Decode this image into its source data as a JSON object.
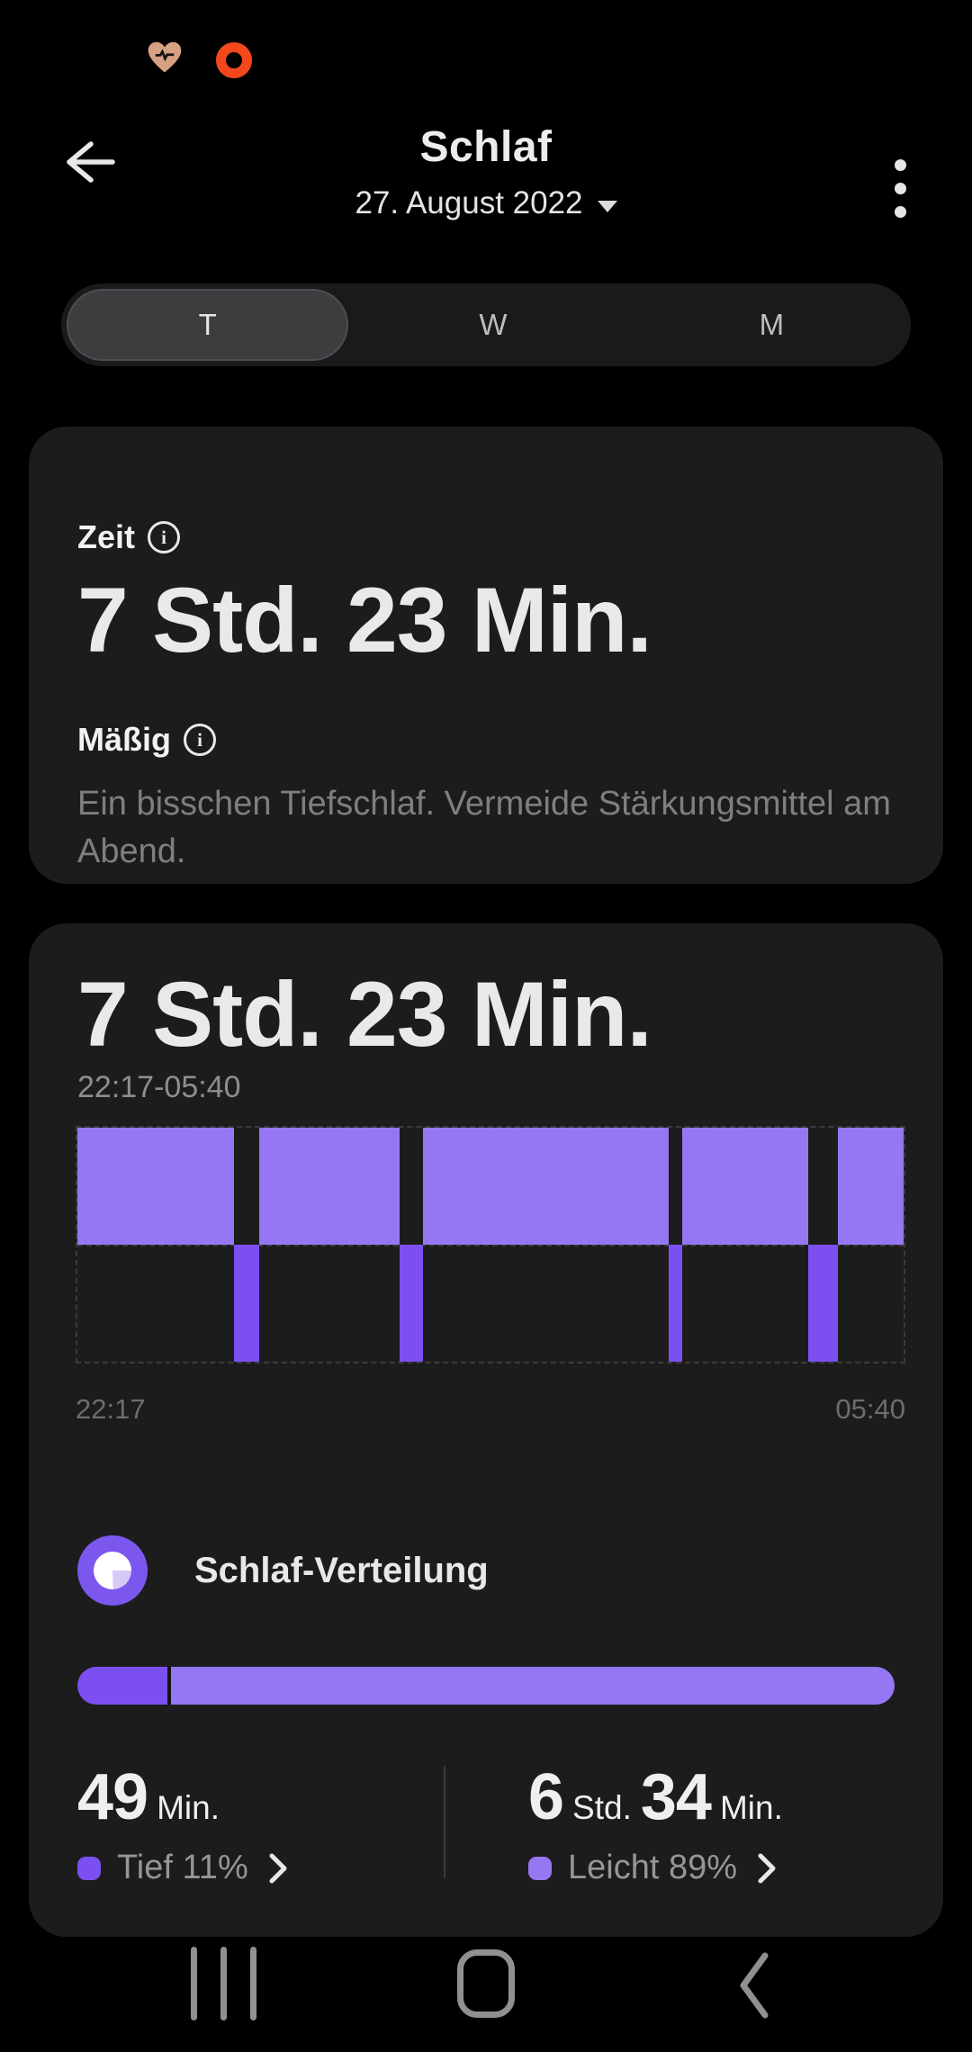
{
  "status": {
    "icons": [
      {
        "name": "heart-rate-monitoring",
        "color": "#d7a183"
      },
      {
        "name": "screen-recording",
        "color": "#f4481c"
      }
    ]
  },
  "header": {
    "title": "Schlaf",
    "date": "27. August 2022"
  },
  "tabs": {
    "day": "T",
    "week": "W",
    "month": "M",
    "selected": "T"
  },
  "summary_card": {
    "time_label": "Zeit",
    "duration": "7 Std. 23 Min.",
    "quality_label": "Mäßig",
    "description": "Ein bisschen Tiefschlaf. Vermeide Stärkungsmittel am Abend."
  },
  "detail_card": {
    "duration": "7 Std. 23 Min.",
    "time_range": "22:17-05:40",
    "axis_start": "22:17",
    "axis_end": "05:40",
    "distribution_title": "Schlaf-Verteilung",
    "stats": {
      "deep": {
        "value": "49",
        "unit": "Min.",
        "legend": "Tief 11%"
      },
      "light": {
        "value_hours": "6",
        "unit_hours": "Std.",
        "value_minutes": "34",
        "unit_minutes": "Min.",
        "legend": "Leicht 89%"
      }
    }
  },
  "chart_data": [
    {
      "type": "timeline",
      "title": "Schlafphasen-Hypnogramm",
      "x_start": "22:17",
      "x_end": "05:40",
      "total_duration": "7 Std. 23 Min.",
      "colors": {
        "light": "#9577f3",
        "deep": "#7b4ff0"
      },
      "segments": [
        {
          "stage": "light",
          "start_pct": 0,
          "end_pct": 19
        },
        {
          "stage": "deep",
          "start_pct": 19,
          "end_pct": 22
        },
        {
          "stage": "light",
          "start_pct": 22,
          "end_pct": 39
        },
        {
          "stage": "deep",
          "start_pct": 39,
          "end_pct": 41.8
        },
        {
          "stage": "light",
          "start_pct": 41.8,
          "end_pct": 71.6
        },
        {
          "stage": "deep",
          "start_pct": 71.6,
          "end_pct": 73.2
        },
        {
          "stage": "light",
          "start_pct": 73.2,
          "end_pct": 88.4
        },
        {
          "stage": "deep",
          "start_pct": 88.4,
          "end_pct": 92
        },
        {
          "stage": "light",
          "start_pct": 92,
          "end_pct": 100
        }
      ]
    },
    {
      "type": "stacked-bar",
      "title": "Schlaf-Verteilung",
      "series": [
        {
          "name": "Tief",
          "percent": 11,
          "duration_min": 49,
          "color": "#7b4ff0"
        },
        {
          "name": "Leicht",
          "percent": 89,
          "duration_min": 394,
          "color": "#9577f3"
        }
      ]
    }
  ],
  "navbar": {
    "icons": [
      "recents",
      "home",
      "back"
    ]
  }
}
